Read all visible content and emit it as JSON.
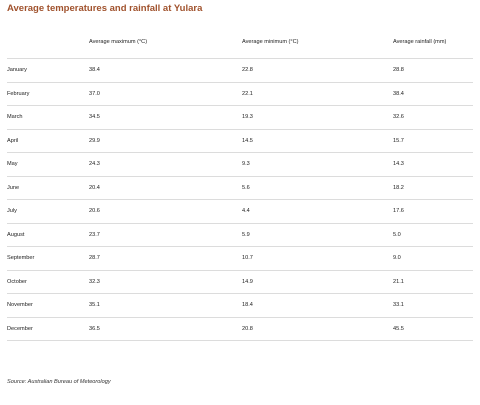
{
  "title": "Average temperatures and rainfall at Yulara",
  "table": {
    "headers": [
      "",
      "Average maximum (°C)",
      "Average minimum (°C)",
      "Average rainfall (mm)"
    ],
    "rows": [
      [
        "January",
        "38.4",
        "22.8",
        "28.8"
      ],
      [
        "February",
        "37.0",
        "22.1",
        "38.4"
      ],
      [
        "March",
        "34.5",
        "19.3",
        "32.6"
      ],
      [
        "April",
        "29.9",
        "14.5",
        "15.7"
      ],
      [
        "May",
        "24.3",
        "9.3",
        "14.3"
      ],
      [
        "June",
        "20.4",
        "5.6",
        "18.2"
      ],
      [
        "July",
        "20.6",
        "4.4",
        "17.6"
      ],
      [
        "August",
        "23.7",
        "5.9",
        "5.0"
      ],
      [
        "September",
        "28.7",
        "10.7",
        "9.0"
      ],
      [
        "October",
        "32.3",
        "14.9",
        "21.1"
      ],
      [
        "November",
        "35.1",
        "18.4",
        "33.1"
      ],
      [
        "December",
        "36.5",
        "20.8",
        "45.5"
      ]
    ]
  },
  "source": "Source: Australian Bureau of Meteorology",
  "colors": {
    "title": "#a0522d",
    "row_divider": "#dcdcdc",
    "text": "#222222"
  }
}
